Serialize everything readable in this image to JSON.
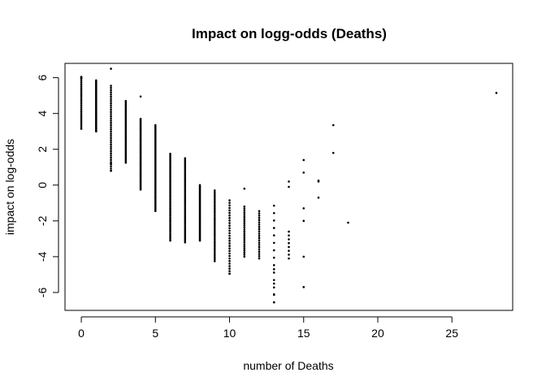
{
  "chart_data": {
    "type": "scatter",
    "title": "Impact on logg-odds (Deaths)",
    "xlabel": "number of Deaths",
    "ylabel": "impact on log-odds",
    "xlim": [
      -1.1,
      29.1
    ],
    "ylim": [
      -7.0,
      6.8
    ],
    "xticks": [
      0,
      5,
      10,
      15,
      20,
      25
    ],
    "yticks": [
      -6,
      -4,
      -2,
      0,
      2,
      4,
      6
    ],
    "grid": false,
    "legend": "none",
    "columns": [
      {
        "x": 0,
        "ymin": 3.15,
        "ymax": 6.05,
        "n": 28,
        "extra": [
          3.15,
          5.95,
          6.0
        ]
      },
      {
        "x": 1,
        "ymin": 3.0,
        "ymax": 5.85,
        "n": 45,
        "extra": []
      },
      {
        "x": 2,
        "ymin": 0.8,
        "ymax": 5.55,
        "n": 40,
        "extra": [
          6.5,
          0.8,
          1.2
        ]
      },
      {
        "x": 3,
        "ymin": 1.25,
        "ymax": 4.7,
        "n": 40,
        "extra": []
      },
      {
        "x": 4,
        "ymin": -0.25,
        "ymax": 3.7,
        "n": 60,
        "extra": [
          4.95
        ]
      },
      {
        "x": 5,
        "ymin": -1.45,
        "ymax": 3.35,
        "n": 60,
        "extra": []
      },
      {
        "x": 6,
        "ymin": -3.1,
        "ymax": 1.75,
        "n": 50,
        "extra": []
      },
      {
        "x": 7,
        "ymin": -3.2,
        "ymax": 1.5,
        "n": 50,
        "extra": []
      },
      {
        "x": 8,
        "ymin": -3.1,
        "ymax": 0.0,
        "n": 50,
        "extra": []
      },
      {
        "x": 9,
        "ymin": -4.25,
        "ymax": -0.3,
        "n": 40,
        "extra": []
      },
      {
        "x": 10,
        "ymin": -4.95,
        "ymax": -0.85,
        "n": 30,
        "extra": [
          -4.95
        ]
      },
      {
        "x": 11,
        "ymin": -4.0,
        "ymax": -1.2,
        "n": 25,
        "extra": [
          -0.2
        ]
      },
      {
        "x": 12,
        "ymin": -4.1,
        "ymax": -1.45,
        "n": 22,
        "extra": []
      },
      {
        "x": 13,
        "ymin": -6.55,
        "ymax": -1.15,
        "n": 14,
        "extra": [
          -4.7,
          -5.5,
          -6.1,
          -6.55
        ]
      },
      {
        "x": 14,
        "ymin": -4.1,
        "ymax": -2.6,
        "n": 8,
        "extra": [
          0.2,
          -0.1
        ]
      }
    ],
    "points": [
      {
        "x": 15,
        "y": 1.4
      },
      {
        "x": 15,
        "y": 0.7
      },
      {
        "x": 15,
        "y": -1.3
      },
      {
        "x": 15,
        "y": -2.0
      },
      {
        "x": 15,
        "y": -4.0
      },
      {
        "x": 15,
        "y": -5.7
      },
      {
        "x": 16,
        "y": 0.25
      },
      {
        "x": 16,
        "y": 0.2
      },
      {
        "x": 16,
        "y": -0.7
      },
      {
        "x": 17,
        "y": 3.35
      },
      {
        "x": 17,
        "y": 1.8
      },
      {
        "x": 18,
        "y": -2.1
      },
      {
        "x": 28,
        "y": 5.15
      }
    ]
  }
}
